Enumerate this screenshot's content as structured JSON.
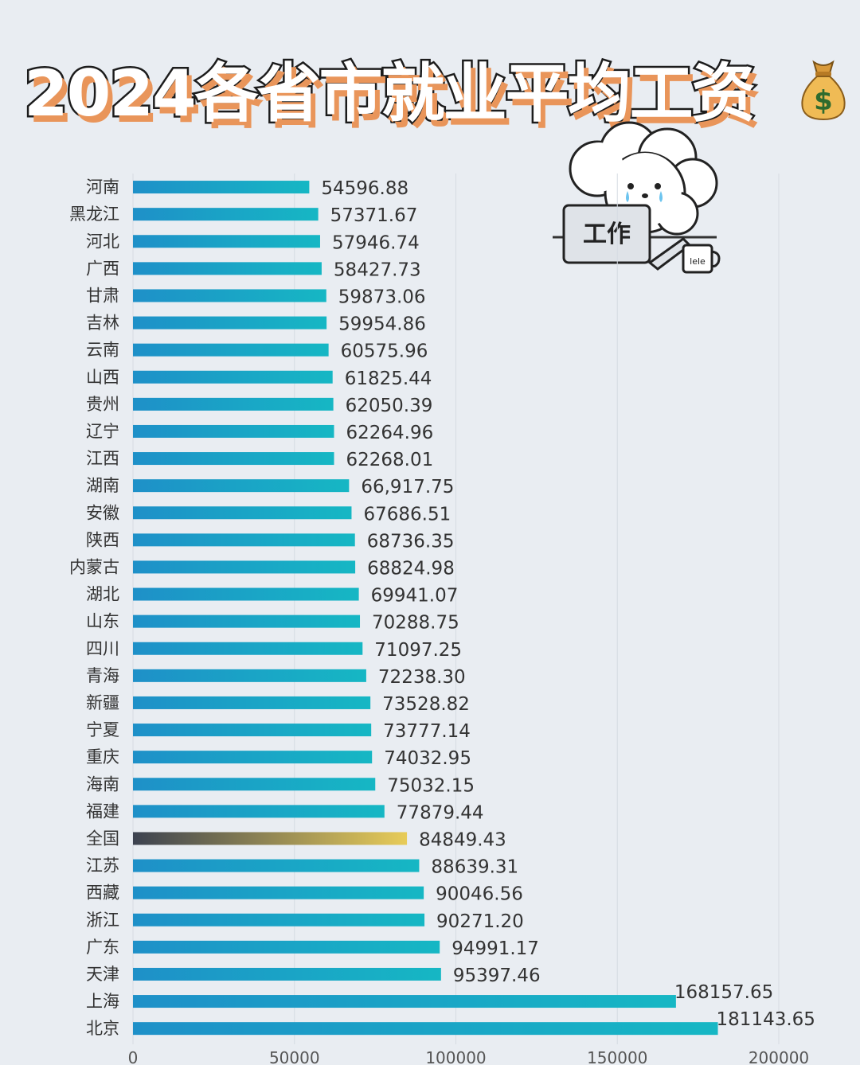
{
  "title": "2024各省市就业平均工资",
  "icons": {
    "title_icon": "money-bag-icon",
    "sticker": "crying-cloud-dog-working-on-laptop"
  },
  "sticker": {
    "laptop_text": "工作",
    "mug_text": "lele"
  },
  "colors": {
    "bar": "#1e90c8",
    "bar_end": "#16b7c4",
    "national_bar_start": "#3c4250",
    "national_bar_end": "#e8cc58",
    "grid": "#d6dbe2",
    "label": "#333333"
  },
  "chart_data": {
    "type": "bar",
    "orientation": "horizontal",
    "title": "2024各省市就业平均工资",
    "categories": [
      "河南",
      "黑龙江",
      "河北",
      "广西",
      "甘肃",
      "吉林",
      "云南",
      "山西",
      "贵州",
      "辽宁",
      "江西",
      "湖南",
      "安徽",
      "陕西",
      "内蒙古",
      "湖北",
      "山东",
      "四川",
      "青海",
      "新疆",
      "宁夏",
      "重庆",
      "海南",
      "福建",
      "全国",
      "江苏",
      "西藏",
      "浙江",
      "广东",
      "天津",
      "上海",
      "北京"
    ],
    "values": [
      54596.88,
      57371.67,
      57946.74,
      58427.73,
      59873.06,
      59954.86,
      60575.96,
      61825.44,
      62050.39,
      62264.96,
      62268.01,
      66917.75,
      67686.51,
      68736.35,
      68824.98,
      69941.07,
      70288.75,
      71097.25,
      72238.3,
      73528.82,
      73777.14,
      74032.95,
      75032.15,
      77879.44,
      84849.43,
      88639.31,
      90046.56,
      90271.2,
      94991.17,
      95397.46,
      168157.65,
      181143.65
    ],
    "value_labels": [
      "54596.88",
      "57371.67",
      "57946.74",
      "58427.73",
      "59873.06",
      "59954.86",
      "60575.96",
      "61825.44",
      "62050.39",
      "62264.96",
      "62268.01",
      "66,917.75",
      "67686.51",
      "68736.35",
      "68824.98",
      "69941.07",
      "70288.75",
      "71097.25",
      "72238.30",
      "73528.82",
      "73777.14",
      "74032.95",
      "75032.15",
      "77879.44",
      "84849.43",
      "88639.31",
      "90046.56",
      "90271.20",
      "94991.17",
      "95397.46",
      "168157.65",
      "181143.65"
    ],
    "highlight_category": "全国",
    "xlim": [
      0,
      200000
    ],
    "xticks": [
      0,
      50000,
      100000,
      150000,
      200000
    ],
    "grid": true
  }
}
